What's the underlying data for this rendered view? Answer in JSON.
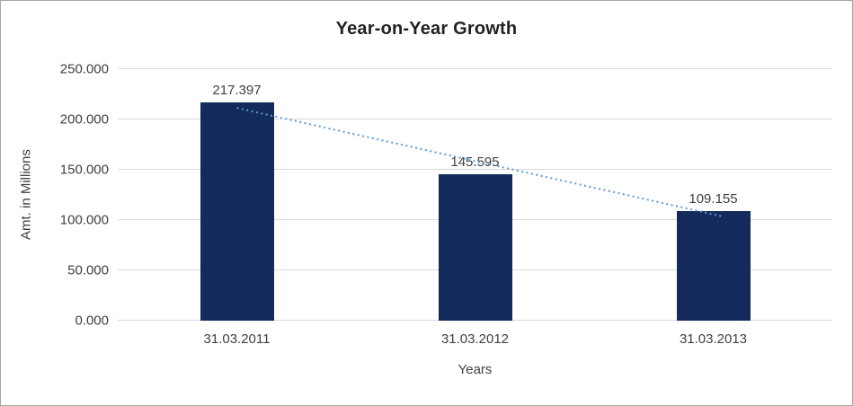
{
  "chart_data": {
    "type": "bar",
    "title": "Year-on-Year Growth",
    "xlabel": "Years",
    "ylabel": "Amt. in Millions",
    "categories": [
      "31.03.2011",
      "31.03.2012",
      "31.03.2013"
    ],
    "values": [
      217.397,
      145.595,
      109.155
    ],
    "value_labels": [
      "217.397",
      "145.595",
      "109.155"
    ],
    "ylim": [
      0,
      250
    ],
    "ytick_step": 50,
    "ytick_labels": [
      "0.000",
      "50.000",
      "100.000",
      "150.000",
      "200.000",
      "250.000"
    ],
    "grid": true,
    "legend": "none",
    "bar_color": "#122a5c",
    "gridline_color": "#d9d9d9",
    "text_color": "#404040",
    "trendline": {
      "style": "dotted",
      "color": "#5b9bd5",
      "start_value": 211.5,
      "end_value": 103.3
    }
  }
}
